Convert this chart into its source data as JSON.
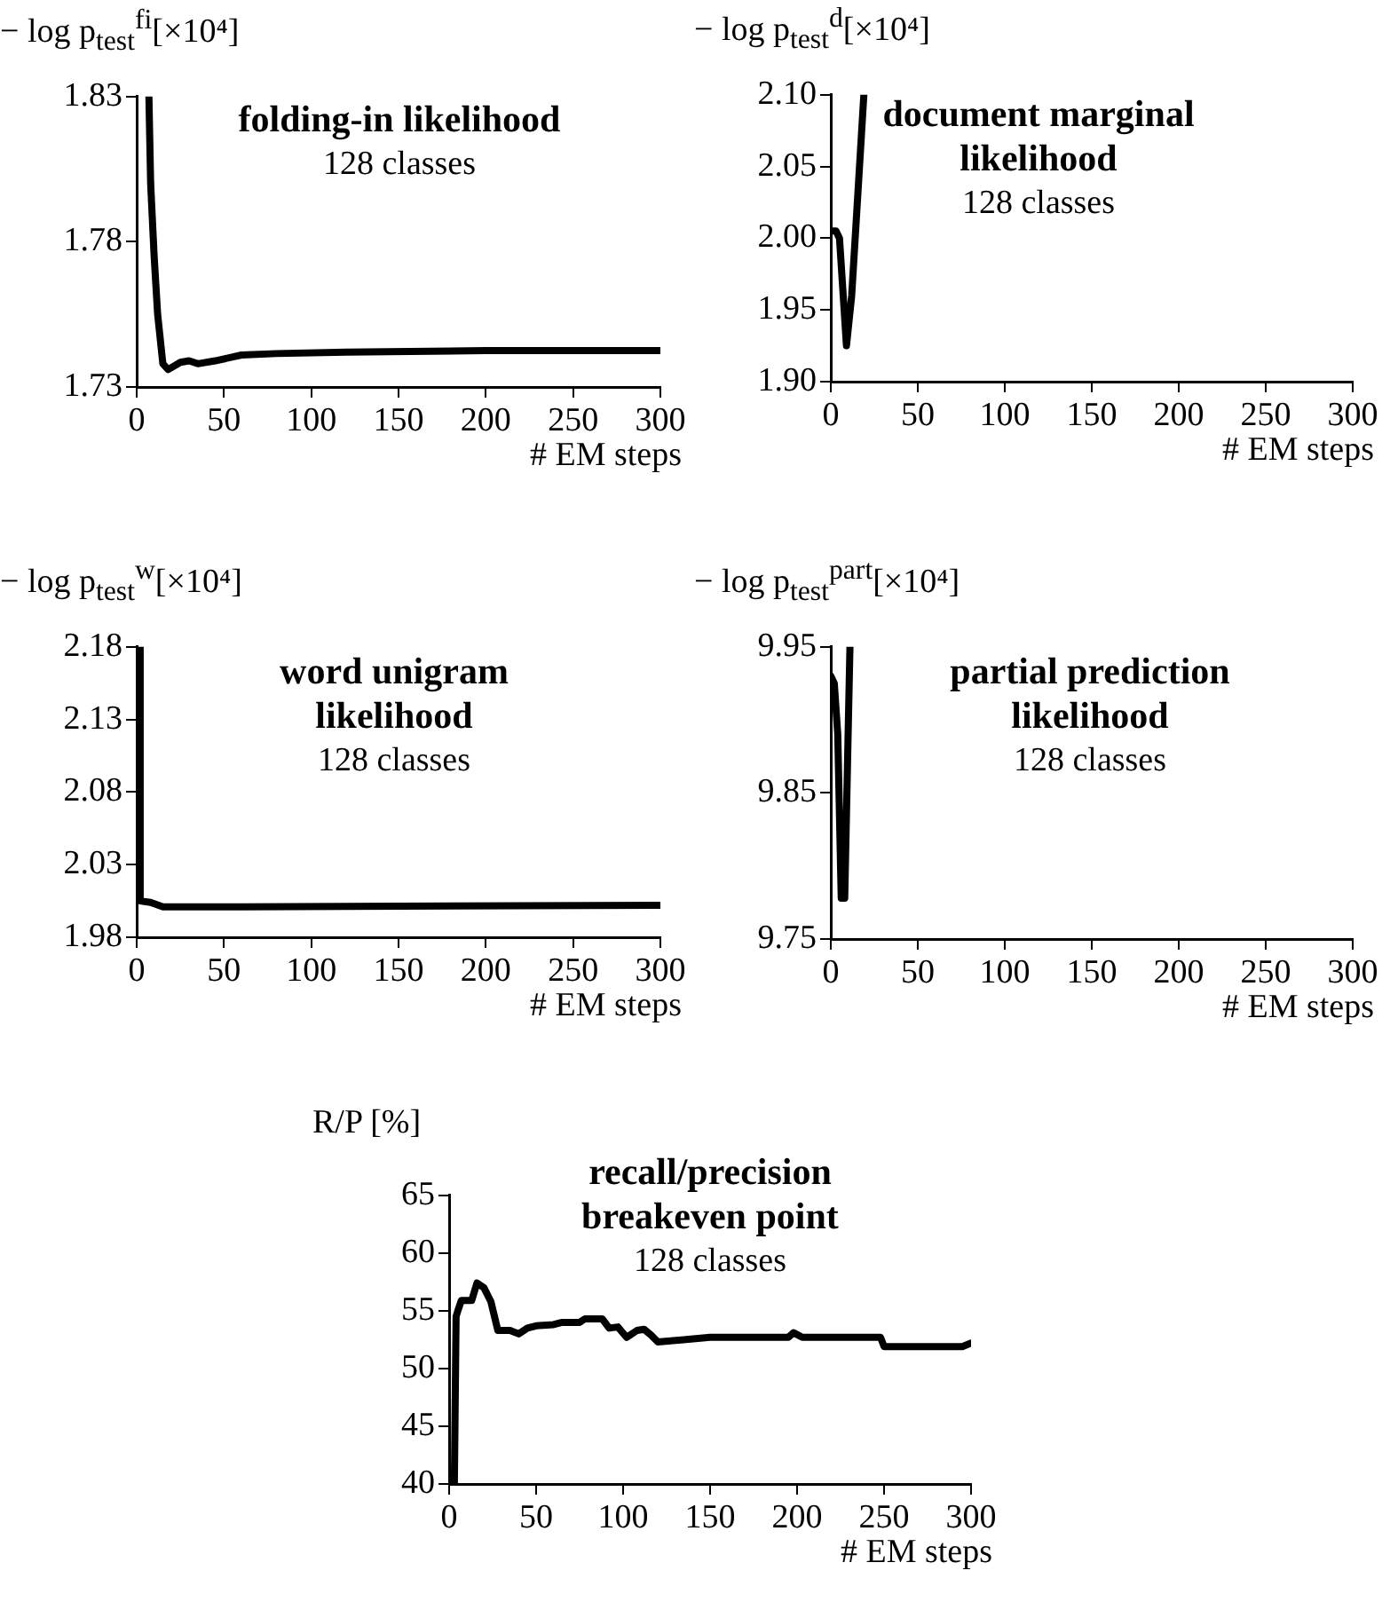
{
  "chart_data": [
    {
      "type": "line",
      "title": "folding-in likelihood",
      "subtitle": "128 classes",
      "ylabel": "− log p$_{test}$$^{fi}$[×10⁴]",
      "xlabel": "# EM steps",
      "color": "#000000",
      "marker": "none",
      "grid": false,
      "x": [
        7,
        8,
        10,
        12,
        15,
        18,
        25,
        30,
        35,
        45,
        60,
        80,
        120,
        200,
        300
      ],
      "values": [
        1.83,
        1.8,
        1.775,
        1.755,
        1.738,
        1.736,
        1.7385,
        1.739,
        1.738,
        1.739,
        1.741,
        1.7415,
        1.742,
        1.7425,
        1.7425
      ],
      "xlim": [
        0,
        300
      ],
      "xticks": [
        0,
        50,
        100,
        150,
        200,
        250,
        300
      ],
      "ylim": [
        1.73,
        1.83
      ],
      "yticks": [
        1.73,
        1.78,
        1.83
      ]
    },
    {
      "type": "line",
      "title": "document marginal likelihood",
      "subtitle": "128 classes",
      "ylabel": "− log p$_{test}$$^{d}$[×10⁴]",
      "xlabel": "# EM steps",
      "color": "#000000",
      "marker": "none",
      "grid": false,
      "x": [
        0,
        3,
        5,
        9,
        12,
        19
      ],
      "values": [
        2.005,
        2.005,
        2.0,
        1.925,
        1.96,
        2.1
      ],
      "xlim": [
        0,
        300
      ],
      "xticks": [
        0,
        50,
        100,
        150,
        200,
        250,
        300
      ],
      "ylim": [
        1.9,
        2.1
      ],
      "yticks": [
        {
          "value": 1.9,
          "label": "1.90"
        },
        1.95,
        {
          "value": 2.0,
          "label": "2.00"
        },
        2.05,
        {
          "value": 2.1,
          "label": "2.10"
        }
      ]
    },
    {
      "type": "line",
      "title": "word unigram likelihood",
      "subtitle": "128 classes",
      "ylabel": "− log p$_{test}$$^{w}$[×10⁴]",
      "xlabel": "# EM steps",
      "color": "#000000",
      "marker": "none",
      "grid": false,
      "x": [
        2,
        2,
        8,
        15,
        60,
        300
      ],
      "values": [
        2.18,
        2.005,
        2.004,
        2.001,
        2.001,
        2.002
      ],
      "xlim": [
        0,
        300
      ],
      "xticks": [
        0,
        50,
        100,
        150,
        200,
        250,
        300
      ],
      "ylim": [
        1.98,
        2.18
      ],
      "yticks": [
        1.98,
        2.03,
        2.08,
        2.13,
        2.18
      ]
    },
    {
      "type": "line",
      "title": "partial prediction likelihood",
      "subtitle": "128 classes",
      "ylabel": "− log p$_{test}$$^{part}$[×10⁴]",
      "xlabel": "# EM steps",
      "color": "#000000",
      "marker": "none",
      "grid": false,
      "x": [
        0,
        2,
        4,
        6,
        8,
        11
      ],
      "values": [
        9.93,
        9.925,
        9.89,
        9.778,
        9.778,
        9.95
      ],
      "xlim": [
        0,
        300
      ],
      "xticks": [
        0,
        50,
        100,
        150,
        200,
        250,
        300
      ],
      "ylim": [
        9.75,
        9.95
      ],
      "yticks": [
        9.75,
        9.85,
        9.95
      ]
    },
    {
      "type": "line",
      "title": "recall/precision breakeven point",
      "subtitle": "128 classes",
      "ylabel": "R/P [%]",
      "xlabel": "# EM steps",
      "color": "#000000",
      "marker": "none",
      "grid": false,
      "x": [
        2,
        3,
        4,
        5,
        7,
        13,
        16,
        20,
        24,
        28,
        35,
        40,
        45,
        50,
        60,
        65,
        75,
        78,
        88,
        92,
        97,
        102,
        108,
        112,
        116,
        120,
        150,
        195,
        198,
        203,
        248,
        250,
        295,
        300
      ],
      "values": [
        40,
        40,
        54.5,
        55,
        55.9,
        55.9,
        57.4,
        57,
        55.8,
        53.3,
        53.3,
        53,
        53.5,
        53.7,
        53.8,
        54,
        54,
        54.3,
        54.3,
        53.5,
        53.6,
        52.7,
        53.3,
        53.4,
        52.9,
        52.3,
        52.7,
        52.7,
        53.1,
        52.7,
        52.7,
        51.9,
        51.9,
        52.2
      ],
      "xlim": [
        0,
        300
      ],
      "xticks": [
        0,
        50,
        100,
        150,
        200,
        250,
        300
      ],
      "ylim": [
        40,
        65
      ],
      "yticks": [
        40,
        45,
        50,
        55,
        60,
        65
      ]
    }
  ]
}
